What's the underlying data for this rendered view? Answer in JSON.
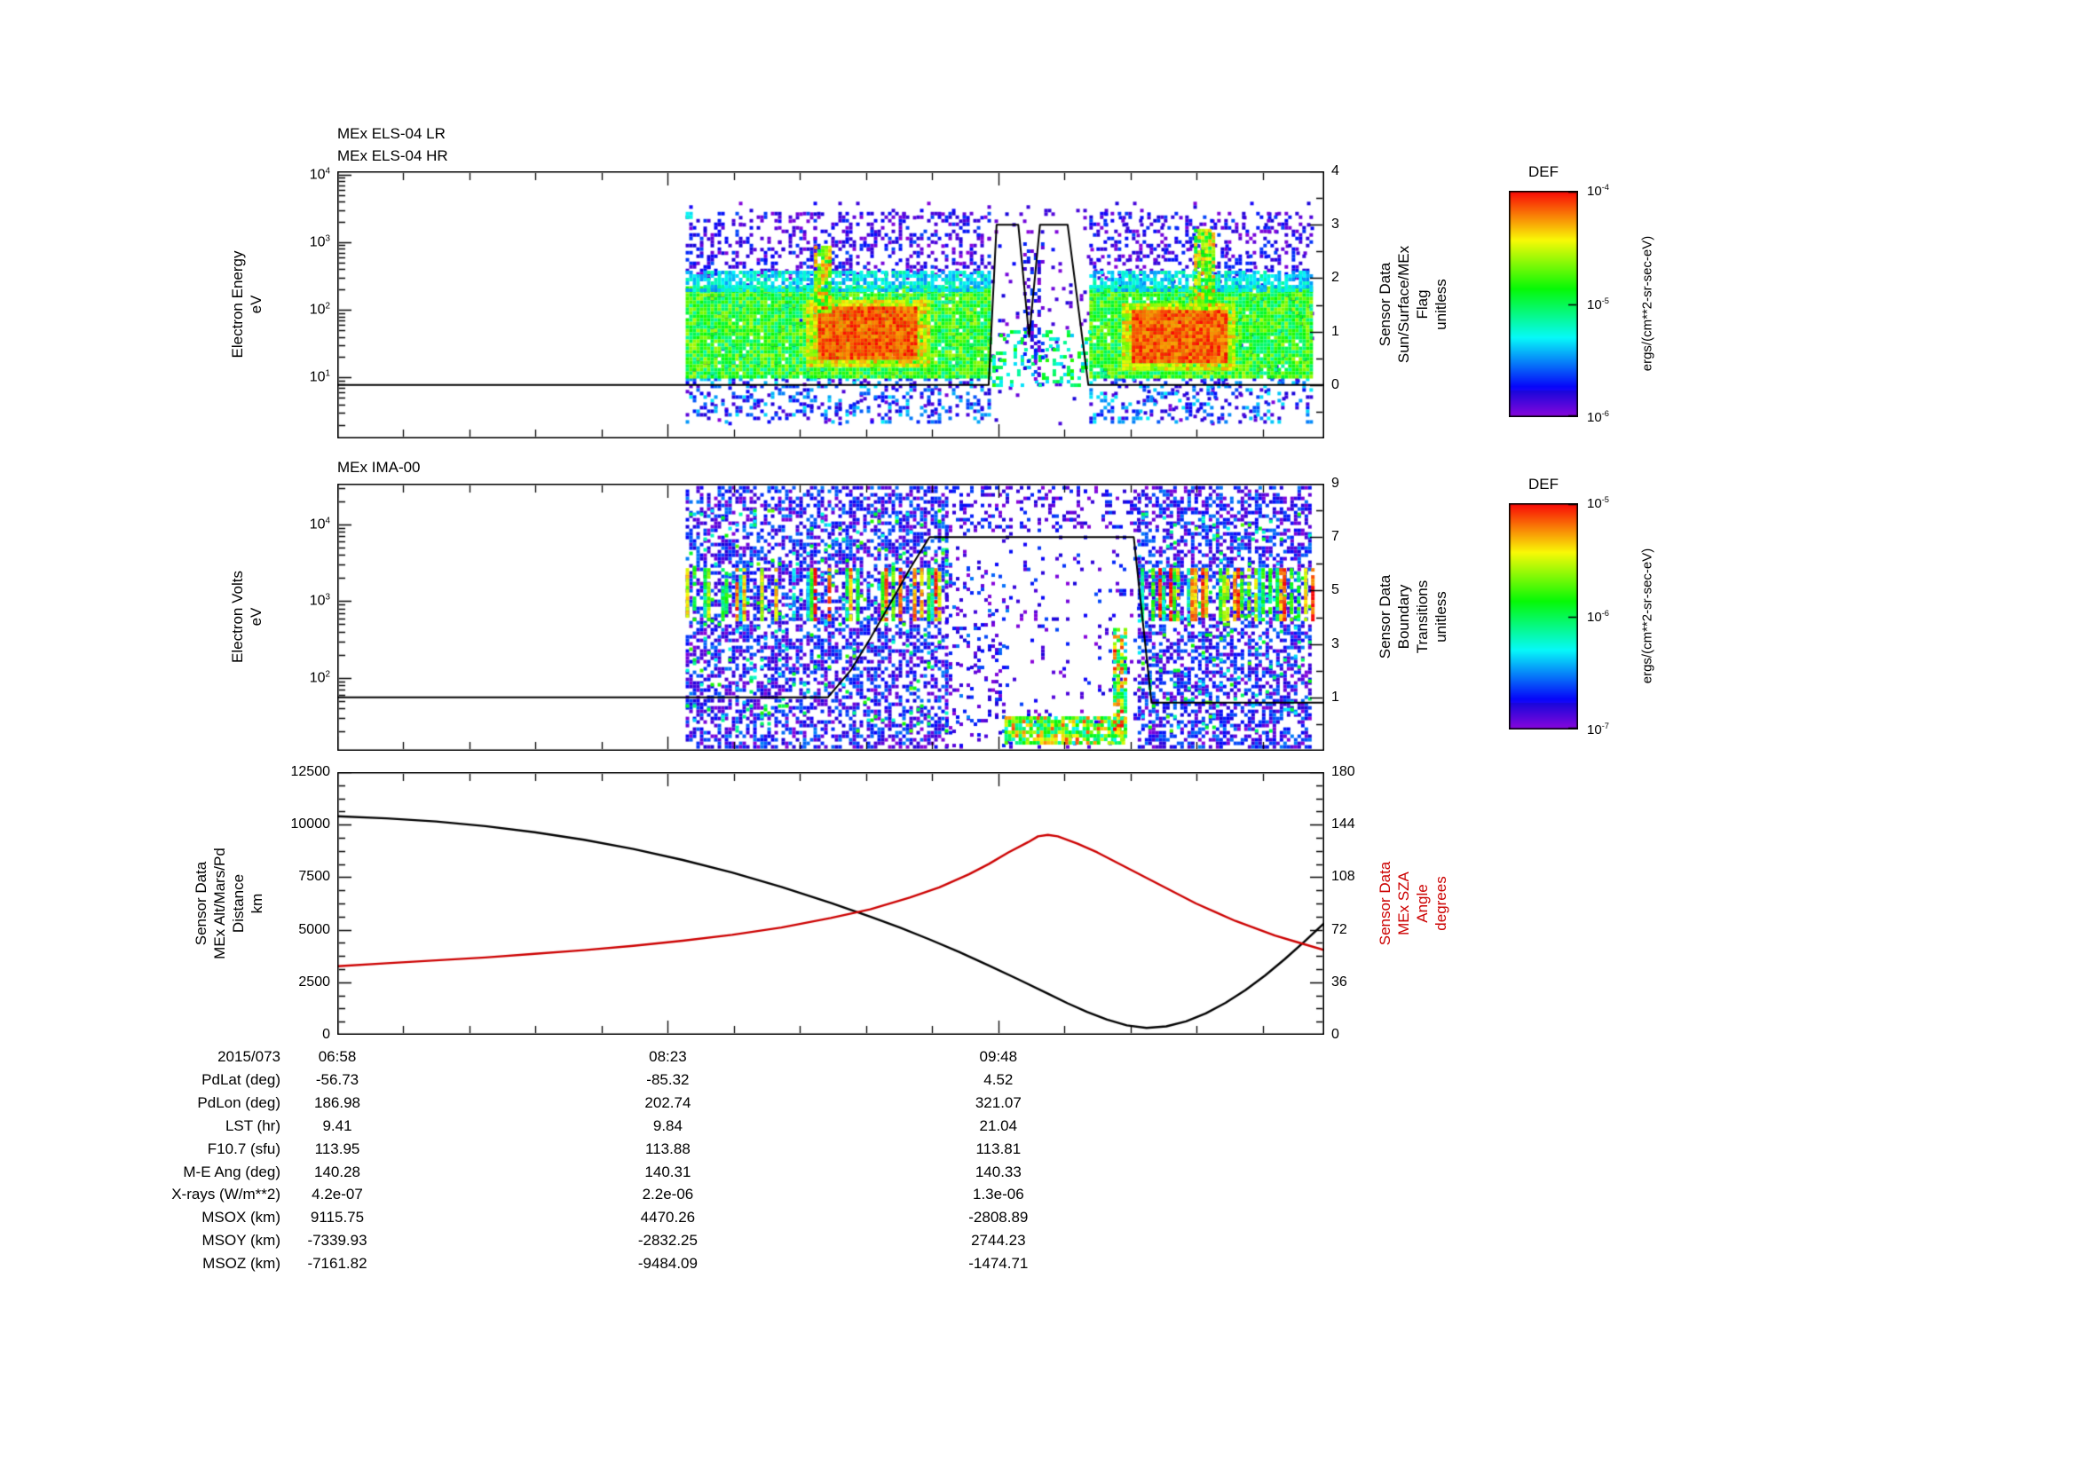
{
  "time_axis": {
    "date_label": "2015/073",
    "tick_minutes": [
      0,
      85,
      170
    ],
    "tick_labels": [
      "06:58",
      "08:23",
      "09:48"
    ],
    "span_minutes": 253.8
  },
  "chart_data": [
    {
      "type": "heatmap",
      "instrument": "MEx ELS-04",
      "title_lines": [
        "MEx ELS-04 LR",
        "MEx ELS-04 HR"
      ],
      "ylabel": "Electron Energy\neV",
      "y_log_range": [
        0.1,
        4.05
      ],
      "y_ticks_exp": [
        4,
        3,
        2,
        1
      ],
      "right_axis": {
        "label": "Sensor Data\nSun/Surface/MEx\nFlag\nunitless",
        "range": [
          -1,
          4
        ],
        "ticks": [
          4,
          3,
          2,
          1,
          0
        ]
      },
      "colorbar_ref": 0,
      "data_coverage_frac": [
        0.353,
        0.987
      ],
      "flag_line": [
        [
          0,
          0
        ],
        [
          0.66,
          0
        ],
        [
          0.668,
          3
        ],
        [
          0.69,
          3
        ],
        [
          0.701,
          0.9
        ],
        [
          0.712,
          3
        ],
        [
          0.74,
          3
        ],
        [
          0.761,
          0
        ],
        [
          1,
          0
        ]
      ],
      "regions": [
        {
          "x": [
            0.353,
            0.987
          ],
          "ly": [
            0.3,
            3.6
          ],
          "d": 0.05,
          "t": [
            0.0,
            0.15
          ]
        },
        {
          "x": [
            0.353,
            0.66
          ],
          "ly": [
            2.55,
            3.45
          ],
          "d": 0.28,
          "t": [
            0.0,
            0.2
          ]
        },
        {
          "x": [
            0.762,
            0.987
          ],
          "ly": [
            2.55,
            3.45
          ],
          "d": 0.28,
          "t": [
            0.0,
            0.2
          ]
        },
        {
          "x": [
            0.353,
            0.66
          ],
          "ly": [
            0.35,
            1.0
          ],
          "d": 0.3,
          "t": [
            0.05,
            0.35
          ]
        },
        {
          "x": [
            0.762,
            0.987
          ],
          "ly": [
            0.35,
            1.0
          ],
          "d": 0.3,
          "t": [
            0.05,
            0.35
          ]
        },
        {
          "x": [
            0.353,
            0.66
          ],
          "ly": [
            1.0,
            2.35
          ],
          "d": 0.97,
          "t": [
            0.42,
            0.72
          ]
        },
        {
          "x": [
            0.353,
            0.66
          ],
          "ly": [
            2.3,
            2.58
          ],
          "d": 0.75,
          "t": [
            0.25,
            0.45
          ]
        },
        {
          "x": [
            0.762,
            0.987
          ],
          "ly": [
            1.0,
            2.35
          ],
          "d": 0.97,
          "t": [
            0.42,
            0.72
          ]
        },
        {
          "x": [
            0.762,
            0.987
          ],
          "ly": [
            2.3,
            2.58
          ],
          "d": 0.75,
          "t": [
            0.25,
            0.45
          ]
        },
        {
          "x": [
            0.475,
            0.6
          ],
          "ly": [
            1.2,
            2.15
          ],
          "d": 0.95,
          "t": [
            0.65,
            0.88
          ]
        },
        {
          "x": [
            0.487,
            0.585
          ],
          "ly": [
            1.27,
            2.05
          ],
          "d": 1.0,
          "t": [
            0.86,
            1.0
          ]
        },
        {
          "x": [
            0.483,
            0.5
          ],
          "ly": [
            2.0,
            2.95
          ],
          "d": 0.85,
          "t": [
            0.5,
            0.9
          ]
        },
        {
          "x": [
            0.795,
            0.91
          ],
          "ly": [
            1.15,
            2.1
          ],
          "d": 0.95,
          "t": [
            0.65,
            0.88
          ]
        },
        {
          "x": [
            0.805,
            0.9
          ],
          "ly": [
            1.25,
            2.0
          ],
          "d": 1.0,
          "t": [
            0.86,
            1.0
          ]
        },
        {
          "x": [
            0.868,
            0.888
          ],
          "ly": [
            2.0,
            3.2
          ],
          "d": 0.85,
          "t": [
            0.5,
            0.9
          ]
        },
        {
          "x": [
            0.66,
            0.762
          ],
          "ly": [
            0.9,
            1.7
          ],
          "d": 0.3,
          "t": [
            0.3,
            0.6
          ]
        },
        {
          "x": [
            0.695,
            0.715
          ],
          "ly": [
            1.0,
            3.0
          ],
          "d": 0.25,
          "t": [
            0.0,
            0.2
          ]
        },
        {
          "x": [
            0.353,
            0.358
          ],
          "ly": [
            3.35,
            3.45
          ],
          "d": 1.0,
          "t": [
            0.3,
            0.4
          ]
        }
      ]
    },
    {
      "type": "heatmap",
      "instrument": "MEx IMA-00",
      "title_lines": [
        "MEx IMA-00"
      ],
      "ylabel": "Electron Volts\neV",
      "y_log_range": [
        1.05,
        4.53
      ],
      "y_ticks_exp": [
        4,
        3,
        2
      ],
      "right_axis": {
        "label": "Sensor Data\nBoundary\nTransitions\nunitless",
        "range": [
          -1,
          9
        ],
        "ticks": [
          9,
          7,
          5,
          3,
          1
        ]
      },
      "colorbar_ref": 1,
      "data_coverage_frac": [
        0.353,
        0.987
      ],
      "boundary_line": [
        [
          0,
          1
        ],
        [
          0.497,
          1
        ],
        [
          0.52,
          2
        ],
        [
          0.54,
          3.2
        ],
        [
          0.56,
          4.5
        ],
        [
          0.58,
          5.8
        ],
        [
          0.6,
          7
        ],
        [
          0.807,
          7
        ],
        [
          0.825,
          0.8
        ],
        [
          1,
          0.8
        ]
      ],
      "regions": [
        {
          "x": [
            0.353,
            0.616
          ],
          "ly": [
            1.1,
            4.5
          ],
          "d": 0.5,
          "t": [
            0.0,
            0.25
          ]
        },
        {
          "x": [
            0.811,
            0.987
          ],
          "ly": [
            1.1,
            4.5
          ],
          "d": 0.5,
          "t": [
            0.0,
            0.25
          ]
        },
        {
          "x": [
            0.353,
            0.616
          ],
          "ly": [
            1.3,
            4.2
          ],
          "d": 0.05,
          "t": [
            0.3,
            0.65
          ]
        },
        {
          "x": [
            0.811,
            0.987
          ],
          "ly": [
            1.3,
            4.2
          ],
          "d": 0.05,
          "t": [
            0.3,
            0.65
          ]
        },
        {
          "x": [
            0.616,
            0.811
          ],
          "ly": [
            1.1,
            4.5
          ],
          "d": 0.07,
          "t": [
            0.0,
            0.2
          ]
        },
        {
          "x": [
            0.616,
            0.811
          ],
          "ly": [
            3.9,
            4.5
          ],
          "d": 0.2,
          "t": [
            0.0,
            0.2
          ]
        },
        {
          "x": [
            0.616,
            0.68
          ],
          "ly": [
            1.1,
            3.5
          ],
          "d": 0.12,
          "t": [
            0.0,
            0.25
          ]
        },
        {
          "type": "stripes",
          "x": [
            0.353,
            0.616
          ],
          "ly": [
            2.77,
            3.43
          ],
          "p": 0.5,
          "d": 0.85,
          "t": [
            0.3,
            1.0
          ]
        },
        {
          "type": "stripes",
          "x": [
            0.814,
            0.987
          ],
          "ly": [
            2.77,
            3.43
          ],
          "p": 0.55,
          "d": 0.85,
          "t": [
            0.3,
            1.0
          ]
        },
        {
          "x": [
            0.676,
            0.795
          ],
          "ly": [
            1.15,
            1.5
          ],
          "d": 0.8,
          "t": [
            0.35,
            0.95
          ]
        },
        {
          "x": [
            0.786,
            0.8
          ],
          "ly": [
            1.2,
            2.65
          ],
          "d": 0.75,
          "t": [
            0.3,
            1.0
          ]
        }
      ]
    },
    {
      "type": "line",
      "left": {
        "label": "Sensor Data\nMEx Alt/Mars/Pd\nDistance\nkm",
        "range": [
          0,
          12500
        ],
        "ticks": [
          12500,
          10000,
          7500,
          5000,
          2500,
          0
        ]
      },
      "right": {
        "label": "Sensor Data\nMEx SZA\nAngle\ndegrees",
        "range": [
          0,
          180
        ],
        "ticks": [
          180,
          144,
          108,
          72,
          36,
          0
        ],
        "color": "#cc0000"
      },
      "series": [
        {
          "name": "MEx altitude (km)",
          "axis": "left",
          "color": "#000000",
          "points": [
            [
              0,
              10400
            ],
            [
              0.05,
              10300
            ],
            [
              0.1,
              10150
            ],
            [
              0.15,
              9930
            ],
            [
              0.2,
              9640
            ],
            [
              0.25,
              9280
            ],
            [
              0.3,
              8840
            ],
            [
              0.35,
              8320
            ],
            [
              0.4,
              7720
            ],
            [
              0.45,
              7040
            ],
            [
              0.5,
              6280
            ],
            [
              0.54,
              5620
            ],
            [
              0.57,
              5100
            ],
            [
              0.6,
              4540
            ],
            [
              0.63,
              3940
            ],
            [
              0.66,
              3300
            ],
            [
              0.69,
              2640
            ],
            [
              0.72,
              1960
            ],
            [
              0.74,
              1500
            ],
            [
              0.76,
              1080
            ],
            [
              0.78,
              720
            ],
            [
              0.8,
              450
            ],
            [
              0.82,
              330
            ],
            [
              0.84,
              400
            ],
            [
              0.86,
              640
            ],
            [
              0.88,
              1020
            ],
            [
              0.9,
              1520
            ],
            [
              0.92,
              2120
            ],
            [
              0.94,
              2820
            ],
            [
              0.96,
              3600
            ],
            [
              0.98,
              4440
            ],
            [
              1,
              5320
            ]
          ]
        },
        {
          "name": "MEx SZA (deg)",
          "axis": "right",
          "color": "#cc0000",
          "points": [
            [
              0,
              47
            ],
            [
              0.05,
              49
            ],
            [
              0.1,
              51
            ],
            [
              0.15,
              53
            ],
            [
              0.2,
              55.5
            ],
            [
              0.25,
              58
            ],
            [
              0.3,
              61
            ],
            [
              0.35,
              64.5
            ],
            [
              0.4,
              68.5
            ],
            [
              0.45,
              73.5
            ],
            [
              0.5,
              80
            ],
            [
              0.54,
              86
            ],
            [
              0.58,
              94
            ],
            [
              0.61,
              101
            ],
            [
              0.64,
              110
            ],
            [
              0.66,
              117
            ],
            [
              0.68,
              125
            ],
            [
              0.7,
              132
            ],
            [
              0.71,
              136
            ],
            [
              0.72,
              137
            ],
            [
              0.73,
              136
            ],
            [
              0.75,
              131
            ],
            [
              0.77,
              125
            ],
            [
              0.79,
              118
            ],
            [
              0.81,
              111
            ],
            [
              0.83,
              104
            ],
            [
              0.85,
              97
            ],
            [
              0.87,
              90
            ],
            [
              0.89,
              84
            ],
            [
              0.91,
              78
            ],
            [
              0.93,
              73
            ],
            [
              0.95,
              68
            ],
            [
              0.97,
              64
            ],
            [
              1,
              58
            ]
          ]
        }
      ]
    }
  ],
  "colorbars": [
    {
      "title": "DEF",
      "unit_label": "ergs/(cm**2-sr-sec-eV)",
      "tick_exps": [
        "-4",
        "-5",
        "-6"
      ]
    },
    {
      "title": "DEF",
      "unit_label": "ergs/(cm**2-sr-sec-eV)",
      "tick_exps": [
        "-5",
        "-6",
        "-7"
      ]
    }
  ],
  "table": {
    "row_labels": [
      "2015/073",
      "PdLat (deg)",
      "PdLon (deg)",
      "LST (hr)",
      "F10.7 (sfu)",
      "M-E Ang (deg)",
      "X-rays (W/m**2)",
      "MSOX (km)",
      "MSOY (km)",
      "MSOZ (km)"
    ],
    "columns": [
      [
        "06:58",
        "-56.73",
        "186.98",
        "9.41",
        "113.95",
        "140.28",
        "4.2e-07",
        "9115.75",
        "-7339.93",
        "-7161.82"
      ],
      [
        "08:23",
        "-85.32",
        "202.74",
        "9.84",
        "113.88",
        "140.31",
        "2.2e-06",
        "4470.26",
        "-2832.25",
        "-9484.09"
      ],
      [
        "09:48",
        "4.52",
        "321.07",
        "21.04",
        "113.81",
        "140.33",
        "1.3e-06",
        "-2808.89",
        "2744.23",
        "-1474.71"
      ]
    ]
  }
}
